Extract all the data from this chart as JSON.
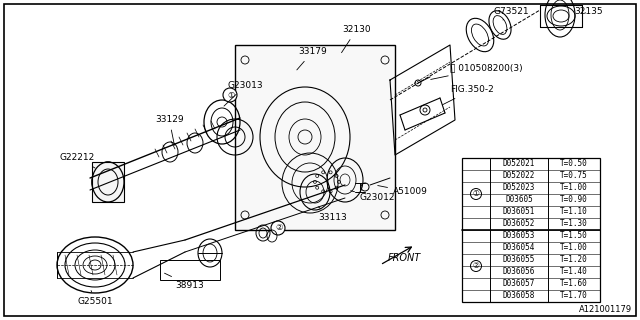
{
  "diagram_id": "A121001179",
  "background_color": "#ffffff",
  "table": {
    "rows": [
      {
        "part": "D052021",
        "thickness": "T=0.50",
        "group": 1
      },
      {
        "part": "D052022",
        "thickness": "T=0.75",
        "group": 1
      },
      {
        "part": "D052023",
        "thickness": "T=1.00",
        "group": 1
      },
      {
        "part": "D03605",
        "thickness": "T=0.90",
        "group": 1
      },
      {
        "part": "D036051",
        "thickness": "T=1.10",
        "group": 1
      },
      {
        "part": "D036052",
        "thickness": "T=1.30",
        "group": 1
      },
      {
        "part": "D036053",
        "thickness": "T=1.50",
        "group": 2
      },
      {
        "part": "D036054",
        "thickness": "T=1.00",
        "group": 2
      },
      {
        "part": "D036055",
        "thickness": "T=1.20",
        "group": 2
      },
      {
        "part": "D036056",
        "thickness": "T=1.40",
        "group": 2
      },
      {
        "part": "D036057",
        "thickness": "T=1.60",
        "group": 2
      },
      {
        "part": "D036058",
        "thickness": "T=1.70",
        "group": 2
      }
    ]
  }
}
